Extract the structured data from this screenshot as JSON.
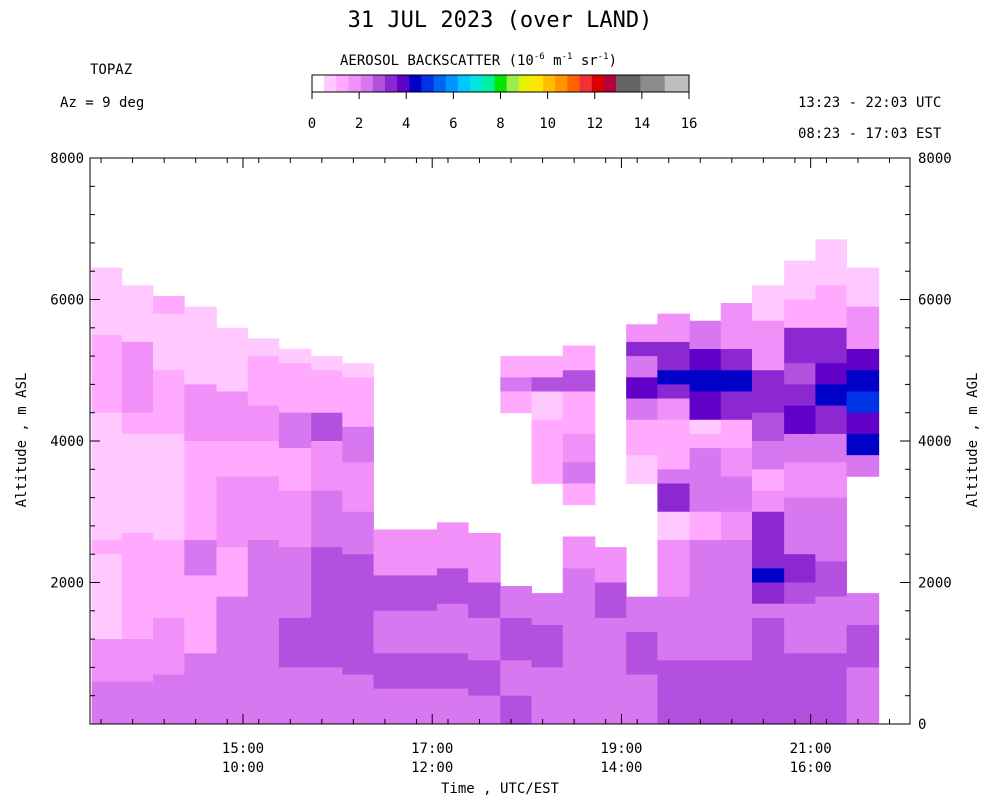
{
  "header": {
    "title": "31 JUL 2023 (over LAND)",
    "instrument": "TOPAZ",
    "azimuth": "Az =   9 deg",
    "utc_range": "13:23 - 22:03 UTC",
    "est_range": "08:23 - 17:03 EST"
  },
  "colorbar": {
    "title_main": "AEROSOL BACKSCATTER (10",
    "title_exp1": "-6",
    "title_mid1": " m",
    "title_exp2": "-1",
    "title_mid2": " sr",
    "title_exp3": "-1",
    "title_end": ")",
    "colors": [
      "#ffffff",
      "#ffc8ff",
      "#ffaaff",
      "#f090f8",
      "#d878f0",
      "#b450e0",
      "#8c28d2",
      "#6000c8",
      "#0000c8",
      "#0032e6",
      "#0064f0",
      "#0096ff",
      "#00c8ff",
      "#00e6dc",
      "#00f0a0",
      "#00e600",
      "#96f050",
      "#e6f000",
      "#ffe600",
      "#ffbe00",
      "#ff9600",
      "#ff6400",
      "#f03232",
      "#dc0000",
      "#b4003c",
      "#646464",
      "#646464",
      "#8c8c8c",
      "#8c8c8c",
      "#bebebe",
      "#bebebe"
    ],
    "range": [
      0,
      16
    ],
    "tick_values": [
      0,
      2,
      4,
      6,
      8,
      10,
      12,
      14,
      16
    ],
    "tick_labels": [
      "0",
      "2",
      "4",
      "6",
      "8",
      "10",
      "12",
      "14",
      "16"
    ]
  },
  "chart_data": {
    "type": "heatmap",
    "title": "31 JUL 2023 (over LAND)",
    "xlabel": "Time , UTC/EST",
    "ylabel_left": "Altitude , m ASL",
    "ylabel_right": "Altitude , m AGL",
    "xlim": [
      13.383,
      22.05
    ],
    "ylim": [
      0,
      8000
    ],
    "x_ticks": [
      {
        "value": 15,
        "utc": "15:00",
        "est": "10:00"
      },
      {
        "value": 17,
        "utc": "17:00",
        "est": "12:00"
      },
      {
        "value": 19,
        "utc": "19:00",
        "est": "14:00"
      },
      {
        "value": 21,
        "utc": "21:00",
        "est": "16:00"
      }
    ],
    "y_ticks_left": [
      {
        "value": 2000,
        "label": "2000"
      },
      {
        "value": 4000,
        "label": "4000"
      },
      {
        "value": 6000,
        "label": "6000"
      },
      {
        "value": 8000,
        "label": "8000"
      }
    ],
    "y_ticks_right": [
      {
        "value": 0,
        "label": "0"
      },
      {
        "value": 2000,
        "label": "2000"
      },
      {
        "value": 4000,
        "label": "4000"
      },
      {
        "value": 6000,
        "label": "6000"
      },
      {
        "value": 8000,
        "label": "8000"
      }
    ],
    "profiles": [
      {
        "t0": 13.4,
        "t1": 13.72,
        "top": 6450,
        "layers": [
          [
            6300,
            1.0
          ],
          [
            5500,
            0.8
          ],
          [
            4400,
            1.3
          ],
          [
            2600,
            0.6
          ],
          [
            2400,
            1.5
          ],
          [
            1200,
            1.0
          ],
          [
            600,
            2.0
          ],
          [
            0,
            2.5
          ]
        ]
      },
      {
        "t0": 13.72,
        "t1": 14.05,
        "top": 6200,
        "layers": [
          [
            6100,
            1.0
          ],
          [
            5400,
            0.8
          ],
          [
            4400,
            2.0
          ],
          [
            4100,
            1.5
          ],
          [
            2700,
            0.8
          ],
          [
            1200,
            1.2
          ],
          [
            600,
            2.0
          ],
          [
            0,
            2.5
          ]
        ]
      },
      {
        "t0": 14.05,
        "t1": 14.38,
        "top": 6050,
        "layers": [
          [
            5800,
            1.2
          ],
          [
            5000,
            0.8
          ],
          [
            4100,
            1.3
          ],
          [
            2600,
            1.0
          ],
          [
            1500,
            1.2
          ],
          [
            700,
            2.0
          ],
          [
            0,
            2.2
          ]
        ]
      },
      {
        "t0": 14.38,
        "t1": 14.72,
        "top": 5900,
        "layers": [
          [
            5600,
            1.0
          ],
          [
            4800,
            0.8
          ],
          [
            4000,
            1.6
          ],
          [
            2600,
            1.2
          ],
          [
            2100,
            2.5
          ],
          [
            1000,
            1.5
          ],
          [
            0,
            2.5
          ]
        ]
      },
      {
        "t0": 14.72,
        "t1": 15.05,
        "top": 5600,
        "layers": [
          [
            5400,
            1.0
          ],
          [
            4700,
            0.8
          ],
          [
            4000,
            2.0
          ],
          [
            3500,
            1.5
          ],
          [
            2500,
            2.0
          ],
          [
            1800,
            1.5
          ],
          [
            900,
            2.2
          ],
          [
            0,
            2.5
          ]
        ]
      },
      {
        "t0": 15.05,
        "t1": 15.38,
        "top": 5450,
        "layers": [
          [
            5200,
            0.8
          ],
          [
            4500,
            1.2
          ],
          [
            4000,
            2.0
          ],
          [
            3500,
            1.5
          ],
          [
            2600,
            2.0
          ],
          [
            1800,
            2.2
          ],
          [
            1000,
            2.5
          ],
          [
            0,
            2.5
          ]
        ]
      },
      {
        "t0": 15.38,
        "t1": 15.72,
        "top": 5300,
        "layers": [
          [
            5100,
            0.8
          ],
          [
            4400,
            1.5
          ],
          [
            3900,
            2.2
          ],
          [
            3300,
            1.5
          ],
          [
            2500,
            2.0
          ],
          [
            1500,
            2.5
          ],
          [
            800,
            3.0
          ],
          [
            0,
            2.5
          ]
        ]
      },
      {
        "t0": 15.72,
        "t1": 16.05,
        "top": 5200,
        "layers": [
          [
            5000,
            0.8
          ],
          [
            4400,
            1.5
          ],
          [
            4000,
            2.8
          ],
          [
            3300,
            1.8
          ],
          [
            2500,
            2.2
          ],
          [
            1500,
            2.8
          ],
          [
            800,
            3.0
          ],
          [
            0,
            2.5
          ]
        ]
      },
      {
        "t0": 16.05,
        "t1": 16.38,
        "top": 5100,
        "layers": [
          [
            4900,
            0.8
          ],
          [
            4200,
            1.5
          ],
          [
            3700,
            2.5
          ],
          [
            3000,
            1.8
          ],
          [
            2400,
            2.2
          ],
          [
            1500,
            2.8
          ],
          [
            700,
            3.0
          ],
          [
            0,
            2.5
          ]
        ]
      },
      {
        "t0": 16.38,
        "t1": 16.72,
        "top": 2750,
        "layers": [
          [
            2100,
            2.0
          ],
          [
            1600,
            2.8
          ],
          [
            1000,
            2.5
          ],
          [
            500,
            3.0
          ],
          [
            0,
            2.5
          ]
        ]
      },
      {
        "t0": 16.72,
        "t1": 17.05,
        "top": 2750,
        "layers": [
          [
            2100,
            2.0
          ],
          [
            1600,
            2.8
          ],
          [
            1000,
            2.5
          ],
          [
            500,
            3.0
          ],
          [
            0,
            2.5
          ]
        ]
      },
      {
        "t0": 17.05,
        "t1": 17.38,
        "top": 2850,
        "layers": [
          [
            2200,
            2.0
          ],
          [
            1700,
            2.8
          ],
          [
            1000,
            2.5
          ],
          [
            500,
            3.0
          ],
          [
            0,
            2.5
          ]
        ]
      },
      {
        "t0": 17.38,
        "t1": 17.72,
        "top": 2700,
        "layers": [
          [
            2000,
            2.0
          ],
          [
            1500,
            2.8
          ],
          [
            900,
            2.5
          ],
          [
            400,
            3.0
          ],
          [
            0,
            2.5
          ]
        ]
      },
      {
        "t0": 17.72,
        "t1": 18.05,
        "top": 1950,
        "layers": [
          [
            1500,
            2.5
          ],
          [
            900,
            3.0
          ],
          [
            400,
            2.5
          ],
          [
            0,
            2.8
          ]
        ]
      },
      {
        "t0": 17.72,
        "t1": 18.05,
        "top": 5200,
        "bottom": 4400,
        "layers": [
          [
            4900,
            1.5
          ],
          [
            4700,
            2.5
          ],
          [
            4400,
            1.2
          ]
        ]
      },
      {
        "t0": 18.05,
        "t1": 18.38,
        "top": 1850,
        "layers": [
          [
            1400,
            2.5
          ],
          [
            800,
            3.0
          ],
          [
            0,
            2.5
          ]
        ]
      },
      {
        "t0": 18.05,
        "t1": 18.38,
        "top": 5200,
        "bottom": 3400,
        "layers": [
          [
            4900,
            1.5
          ],
          [
            4700,
            2.8
          ],
          [
            4300,
            1.0
          ],
          [
            3700,
            1.2
          ],
          [
            3400,
            1.2
          ]
        ]
      },
      {
        "t0": 18.38,
        "t1": 18.72,
        "top": 2650,
        "layers": [
          [
            2200,
            1.8
          ],
          [
            1600,
            2.5
          ],
          [
            900,
            2.5
          ],
          [
            0,
            2.5
          ]
        ]
      },
      {
        "t0": 18.38,
        "t1": 18.72,
        "top": 5350,
        "bottom": 3100,
        "layers": [
          [
            5000,
            1.5
          ],
          [
            4700,
            2.8
          ],
          [
            4100,
            1.2
          ],
          [
            3700,
            2.0
          ],
          [
            3400,
            2.5
          ],
          [
            3100,
            1.5
          ]
        ]
      },
      {
        "t0": 18.72,
        "t1": 19.05,
        "top": 2500,
        "layers": [
          [
            2000,
            2.0
          ],
          [
            1500,
            2.8
          ],
          [
            800,
            2.5
          ],
          [
            0,
            2.5
          ]
        ]
      },
      {
        "t0": 19.05,
        "t1": 19.38,
        "top": 1800,
        "layers": [
          [
            1300,
            2.5
          ],
          [
            700,
            2.8
          ],
          [
            0,
            2.5
          ]
        ]
      },
      {
        "t0": 19.05,
        "t1": 19.38,
        "top": 5650,
        "bottom": 3400,
        "layers": [
          [
            5400,
            2.0
          ],
          [
            5200,
            3.2
          ],
          [
            4900,
            2.5
          ],
          [
            4600,
            3.8
          ],
          [
            4300,
            2.2
          ],
          [
            3800,
            1.2
          ],
          [
            3400,
            1.0
          ]
        ]
      },
      {
        "t0": 19.38,
        "t1": 19.72,
        "top": 5800,
        "layers": [
          [
            5400,
            2.0
          ],
          [
            5000,
            3.5
          ],
          [
            4800,
            4.5
          ],
          [
            4600,
            3.5
          ],
          [
            4300,
            2.0
          ],
          [
            3600,
            1.5
          ],
          [
            3400,
            2.5
          ],
          [
            3000,
            3.2
          ],
          [
            2600,
            1.0
          ],
          [
            1800,
            1.8
          ],
          [
            900,
            2.5
          ],
          [
            0,
            2.8
          ]
        ]
      },
      {
        "t0": 19.72,
        "t1": 20.05,
        "top": 5700,
        "layers": [
          [
            5300,
            2.2
          ],
          [
            5000,
            4.0
          ],
          [
            4700,
            4.5
          ],
          [
            4300,
            3.8
          ],
          [
            4100,
            1.0
          ],
          [
            3900,
            1.5
          ],
          [
            3500,
            2.2
          ],
          [
            3000,
            2.5
          ],
          [
            2600,
            1.5
          ],
          [
            1800,
            2.2
          ],
          [
            900,
            2.5
          ],
          [
            0,
            2.8
          ]
        ]
      },
      {
        "t0": 20.05,
        "t1": 20.38,
        "top": 5950,
        "layers": [
          [
            5300,
            2.0
          ],
          [
            5000,
            3.5
          ],
          [
            4700,
            4.2
          ],
          [
            4300,
            3.5
          ],
          [
            3900,
            1.2
          ],
          [
            3500,
            2.0
          ],
          [
            3000,
            2.5
          ],
          [
            2600,
            1.8
          ],
          [
            1800,
            2.2
          ],
          [
            900,
            2.5
          ],
          [
            0,
            2.8
          ]
        ]
      },
      {
        "t0": 20.38,
        "t1": 20.72,
        "top": 6200,
        "layers": [
          [
            5700,
            1.0
          ],
          [
            5000,
            1.8
          ],
          [
            4700,
            3.2
          ],
          [
            4400,
            3.6
          ],
          [
            4000,
            2.8
          ],
          [
            3600,
            2.2
          ],
          [
            3300,
            1.5
          ],
          [
            3000,
            2.0
          ],
          [
            2200,
            3.2
          ],
          [
            2000,
            4.5
          ],
          [
            1700,
            3.5
          ],
          [
            1500,
            2.5
          ],
          [
            800,
            3.0
          ],
          [
            0,
            2.8
          ]
        ]
      },
      {
        "t0": 20.72,
        "t1": 21.05,
        "top": 6550,
        "layers": [
          [
            6000,
            1.0
          ],
          [
            5600,
            1.5
          ],
          [
            5100,
            3.4
          ],
          [
            4800,
            2.8
          ],
          [
            4500,
            3.6
          ],
          [
            4100,
            3.8
          ],
          [
            3700,
            2.5
          ],
          [
            3200,
            2.0
          ],
          [
            2400,
            2.5
          ],
          [
            2000,
            3.5
          ],
          [
            1700,
            2.8
          ],
          [
            1000,
            2.5
          ],
          [
            0,
            2.8
          ]
        ]
      },
      {
        "t0": 21.05,
        "t1": 21.38,
        "top": 6850,
        "layers": [
          [
            6200,
            1.0
          ],
          [
            5600,
            1.5
          ],
          [
            5100,
            3.5
          ],
          [
            4800,
            4.0
          ],
          [
            4500,
            4.5
          ],
          [
            4100,
            3.5
          ],
          [
            3700,
            2.2
          ],
          [
            3200,
            1.8
          ],
          [
            2300,
            2.2
          ],
          [
            1800,
            2.8
          ],
          [
            1000,
            2.5
          ],
          [
            0,
            2.8
          ]
        ]
      },
      {
        "t0": 21.38,
        "t1": 21.72,
        "top": 6450,
        "layers": [
          [
            5900,
            1.0
          ],
          [
            5300,
            2.0
          ],
          [
            5000,
            4.0
          ],
          [
            4700,
            4.2
          ],
          [
            4400,
            5.0
          ],
          [
            4100,
            3.8
          ],
          [
            3800,
            4.5
          ],
          [
            3500,
            2.5
          ]
        ]
      },
      {
        "t0": 21.38,
        "t1": 21.72,
        "top": 1850,
        "layers": [
          [
            1400,
            2.5
          ],
          [
            800,
            2.8
          ],
          [
            0,
            2.5
          ]
        ]
      }
    ]
  }
}
